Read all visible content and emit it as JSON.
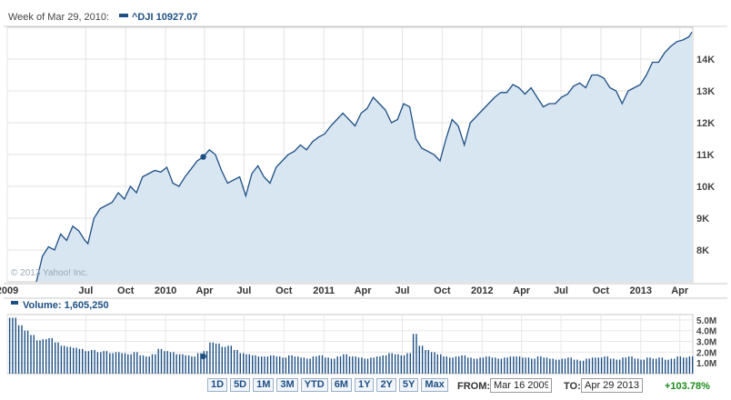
{
  "header": {
    "week_label": "Week of Mar 29, 2010:",
    "symbol_label": "^DJI 10927.07",
    "series_color": "#1d4f85"
  },
  "watermark": "© 2013 Yahoo! Inc.",
  "volume_header": "Volume: 1,605,250",
  "controls": {
    "ranges": [
      "1D",
      "5D",
      "1M",
      "3M",
      "YTD",
      "6M",
      "1Y",
      "2Y",
      "5Y",
      "Max"
    ],
    "from_label": "FROM:",
    "from_value": "Mar 16 2009",
    "to_label": "TO:",
    "to_value": "Apr 29 2013",
    "change": "+103.78%"
  },
  "chart_data": [
    {
      "type": "area",
      "title": "",
      "xlabel": "",
      "ylabel": "",
      "x_ticks": [
        "2009",
        "Jul",
        "Oct",
        "2010",
        "Apr",
        "Jul",
        "Oct",
        "2011",
        "Apr",
        "Jul",
        "Oct",
        "2012",
        "Apr",
        "Jul",
        "Oct",
        "2013",
        "Apr"
      ],
      "x_tick_dates": [
        "2009-01-01",
        "2009-07-01",
        "2009-10-01",
        "2010-01-01",
        "2010-04-01",
        "2010-07-01",
        "2010-10-01",
        "2011-01-01",
        "2011-04-01",
        "2011-07-01",
        "2011-10-01",
        "2012-01-01",
        "2012-04-01",
        "2012-07-01",
        "2012-10-01",
        "2013-01-01",
        "2013-04-01"
      ],
      "y_ticks": [
        8000,
        9000,
        10000,
        11000,
        12000,
        13000,
        14000
      ],
      "y_tick_labels": [
        "8K",
        "9K",
        "10K",
        "11K",
        "12K",
        "13K",
        "14K"
      ],
      "ylim": [
        7000,
        15000
      ],
      "xlim": [
        "2009-01-01",
        "2013-05-01"
      ],
      "grid": true,
      "fill_color": "#d8e6f2",
      "line_color": "#1d4f85",
      "highlight": {
        "x": "2010-03-29",
        "y": 10927.07
      },
      "series": [
        {
          "x": [
            "2009-03-09",
            "2009-03-16",
            "2009-03-23",
            "2009-04-06",
            "2009-04-20",
            "2009-05-04",
            "2009-05-18",
            "2009-06-01",
            "2009-06-15",
            "2009-06-29",
            "2009-07-06",
            "2009-07-20",
            "2009-08-03",
            "2009-08-17",
            "2009-08-31",
            "2009-09-14",
            "2009-09-28",
            "2009-10-12",
            "2009-10-26",
            "2009-11-09",
            "2009-11-23",
            "2009-12-07",
            "2009-12-21",
            "2010-01-04",
            "2010-01-18",
            "2010-02-01",
            "2010-02-15",
            "2010-03-01",
            "2010-03-15",
            "2010-03-29",
            "2010-04-12",
            "2010-04-26",
            "2010-05-10",
            "2010-05-24",
            "2010-06-07",
            "2010-06-21",
            "2010-07-05",
            "2010-07-19",
            "2010-08-02",
            "2010-08-16",
            "2010-08-30",
            "2010-09-13",
            "2010-09-27",
            "2010-10-11",
            "2010-10-25",
            "2010-11-08",
            "2010-11-22",
            "2010-12-06",
            "2010-12-20",
            "2011-01-03",
            "2011-01-17",
            "2011-01-31",
            "2011-02-14",
            "2011-02-28",
            "2011-03-14",
            "2011-03-28",
            "2011-04-11",
            "2011-04-25",
            "2011-05-09",
            "2011-05-23",
            "2011-06-06",
            "2011-06-20",
            "2011-07-04",
            "2011-07-18",
            "2011-08-01",
            "2011-08-15",
            "2011-08-29",
            "2011-09-12",
            "2011-09-26",
            "2011-10-10",
            "2011-10-24",
            "2011-11-07",
            "2011-11-21",
            "2011-12-05",
            "2011-12-19",
            "2012-01-02",
            "2012-01-16",
            "2012-01-30",
            "2012-02-13",
            "2012-02-27",
            "2012-03-12",
            "2012-03-26",
            "2012-04-09",
            "2012-04-23",
            "2012-05-07",
            "2012-05-21",
            "2012-06-04",
            "2012-06-18",
            "2012-07-02",
            "2012-07-16",
            "2012-07-30",
            "2012-08-13",
            "2012-08-27",
            "2012-09-10",
            "2012-09-24",
            "2012-10-08",
            "2012-10-22",
            "2012-11-05",
            "2012-11-19",
            "2012-12-03",
            "2012-12-17",
            "2012-12-31",
            "2013-01-14",
            "2013-01-28",
            "2013-02-11",
            "2013-02-25",
            "2013-03-11",
            "2013-03-25",
            "2013-04-08",
            "2013-04-22",
            "2013-04-29"
          ],
          "values": [
            6700,
            7400,
            7800,
            8100,
            8000,
            8500,
            8300,
            8750,
            8600,
            8300,
            8200,
            9000,
            9300,
            9400,
            9500,
            9800,
            9600,
            10000,
            9800,
            10300,
            10400,
            10500,
            10450,
            10600,
            10100,
            10000,
            10300,
            10550,
            10800,
            10927,
            11150,
            11000,
            10500,
            10100,
            10200,
            10300,
            9700,
            10400,
            10650,
            10300,
            10100,
            10600,
            10800,
            11000,
            11100,
            11300,
            11150,
            11400,
            11550,
            11650,
            11900,
            12100,
            12300,
            12100,
            11900,
            12300,
            12450,
            12800,
            12600,
            12400,
            12000,
            12100,
            12600,
            12500,
            11500,
            11200,
            11100,
            11000,
            10800,
            11500,
            12100,
            11900,
            11300,
            12000,
            12200,
            12400,
            12600,
            12800,
            12950,
            12950,
            13200,
            13100,
            12900,
            13100,
            12800,
            12500,
            12600,
            12600,
            12800,
            12900,
            13150,
            13250,
            13100,
            13500,
            13500,
            13400,
            13100,
            13000,
            12600,
            13000,
            13100,
            13200,
            13500,
            13900,
            13900,
            14200,
            14400,
            14550,
            14600,
            14700,
            14850
          ]
        }
      ]
    },
    {
      "type": "bar",
      "title": "",
      "xlabel": "",
      "ylabel": "Volume",
      "y_ticks": [
        1000000,
        2000000,
        3000000,
        4000000,
        5000000
      ],
      "y_tick_labels": [
        "1.0M",
        "2.0M",
        "3.0M",
        "4.0M",
        "5.0M"
      ],
      "ylim": [
        0,
        5500000
      ],
      "xlim": [
        "2009-01-01",
        "2013-05-01"
      ],
      "bar_color": "#1d4f85",
      "highlight": {
        "x": "2010-03-29",
        "y": 1605250
      },
      "weekly_volume_sample_millions": [
        5.2,
        4.5,
        4.0,
        3.6,
        3.1,
        3.2,
        3.3,
        2.9,
        2.6,
        2.5,
        2.4,
        2.3,
        2.1,
        2.2,
        2.0,
        2.1,
        1.9,
        2.0,
        1.9,
        1.8,
        2.0,
        1.7,
        1.6,
        1.8,
        2.3,
        2.1,
        2.0,
        1.8,
        1.7,
        1.6,
        1.9,
        2.1,
        2.9,
        2.8,
        2.5,
        2.6,
        2.2,
        1.9,
        1.8,
        1.7,
        1.6,
        1.6,
        1.7,
        1.6,
        1.5,
        1.7,
        1.6,
        1.5,
        1.4,
        1.6,
        1.7,
        1.5,
        1.4,
        1.6,
        1.8,
        1.6,
        1.5,
        1.4,
        1.5,
        1.6,
        1.7,
        1.9,
        1.8,
        1.7,
        1.9,
        3.7,
        2.6,
        2.2,
        2.0,
        1.8,
        1.6,
        1.5,
        1.6,
        1.7,
        1.5,
        1.4,
        1.5,
        1.6,
        1.5,
        1.4,
        1.5,
        1.6,
        1.6,
        1.5,
        1.4,
        1.6,
        1.5,
        1.4,
        1.3,
        1.4,
        1.5,
        1.3,
        1.2,
        1.4,
        1.5,
        1.5,
        1.6,
        1.4,
        1.3,
        1.5,
        1.6,
        1.4,
        1.3,
        1.5,
        1.4,
        1.5,
        1.3,
        1.4,
        1.6,
        1.5,
        1.6
      ]
    }
  ]
}
